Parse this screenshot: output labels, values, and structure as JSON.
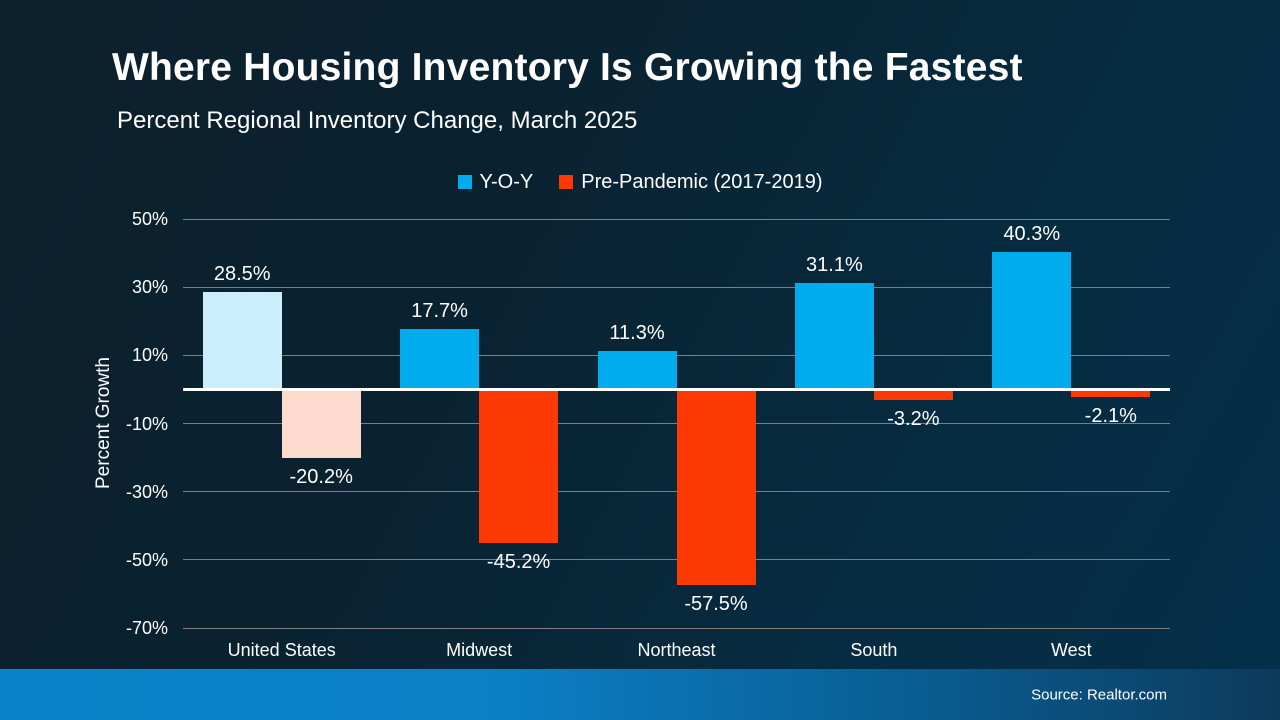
{
  "header": {
    "title": "Where Housing Inventory Is Growing the Fastest",
    "subtitle": "Percent Regional Inventory Change, March 2025"
  },
  "footer": {
    "source": "Source: Realtor.com"
  },
  "chart_data": {
    "type": "bar",
    "title": "Where Housing Inventory Is Growing the Fastest",
    "subtitle": "Percent Regional Inventory Change, March 2025",
    "categories": [
      "United States",
      "Midwest",
      "Northeast",
      "South",
      "West"
    ],
    "series": [
      {
        "name": "Y-O-Y",
        "color": "#00ACEE",
        "highlight_color": "#CBEDFC",
        "values": [
          28.5,
          17.7,
          11.3,
          31.1,
          40.3
        ],
        "value_labels": [
          "28.5%",
          "17.7%",
          "11.3%",
          "31.1%",
          "40.3%"
        ]
      },
      {
        "name": "Pre-Pandemic (2017-2019)",
        "color": "#FD3903",
        "highlight_color": "#FCDACD",
        "values": [
          -20.2,
          -45.2,
          -57.5,
          -3.2,
          -2.1
        ],
        "value_labels": [
          "-20.2%",
          "-45.2%",
          "-57.5%",
          "-3.2%",
          "-2.1%"
        ]
      }
    ],
    "highlighted_category": "United States",
    "ylabel": "Percent Growth",
    "ylim": [
      -70,
      50
    ],
    "yticks": [
      50,
      30,
      10,
      -10,
      -30,
      -50,
      -70
    ],
    "ytick_labels": [
      "50%",
      "30%",
      "10%",
      "-10%",
      "-30%",
      "-50%",
      "-70%"
    ],
    "grid": true,
    "legend_position": "top",
    "zero_line_color": "#FFFFFF",
    "gridline_color": "#7E7E7E"
  }
}
